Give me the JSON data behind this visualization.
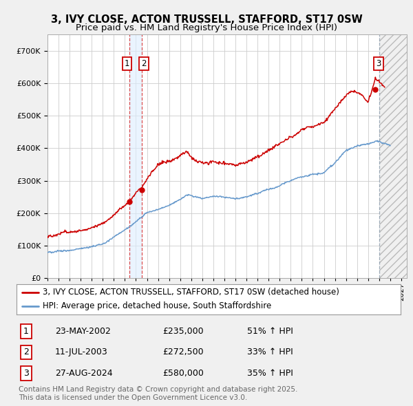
{
  "title": "3, IVY CLOSE, ACTON TRUSSELL, STAFFORD, ST17 0SW",
  "subtitle": "Price paid vs. HM Land Registry's House Price Index (HPI)",
  "ylim": [
    0,
    750000
  ],
  "yticks": [
    0,
    100000,
    200000,
    300000,
    400000,
    500000,
    600000,
    700000
  ],
  "xlim_start": 1995.0,
  "xlim_end": 2027.5,
  "background_color": "#f0f0f0",
  "plot_bg_color": "#ffffff",
  "grid_color": "#cccccc",
  "red_line_color": "#cc0000",
  "blue_line_color": "#6699cc",
  "sale_marker_color": "#cc0000",
  "dashed_color_12": "#cc0000",
  "dashed_color_3": "#8899aa",
  "shade_12_color": "#ddeeff",
  "hatch_color": "#dddddd",
  "legend_label_red": "3, IVY CLOSE, ACTON TRUSSELL, STAFFORD, ST17 0SW (detached house)",
  "legend_label_blue": "HPI: Average price, detached house, South Staffordshire",
  "sale1_x": 2002.388,
  "sale1_y": 235000,
  "sale2_x": 2003.527,
  "sale2_y": 272500,
  "sale3_x": 2024.653,
  "sale3_y": 580000,
  "table_data": [
    [
      "1",
      "23-MAY-2002",
      "£235,000",
      "51% ↑ HPI"
    ],
    [
      "2",
      "11-JUL-2003",
      "£272,500",
      "33% ↑ HPI"
    ],
    [
      "3",
      "27-AUG-2024",
      "£580,000",
      "35% ↑ HPI"
    ]
  ],
  "footnote": "Contains HM Land Registry data © Crown copyright and database right 2025.\nThis data is licensed under the Open Government Licence v3.0.",
  "title_fontsize": 10.5,
  "subtitle_fontsize": 9.5,
  "tick_fontsize": 8,
  "legend_fontsize": 8.5,
  "table_fontsize": 9,
  "footnote_fontsize": 7.5
}
